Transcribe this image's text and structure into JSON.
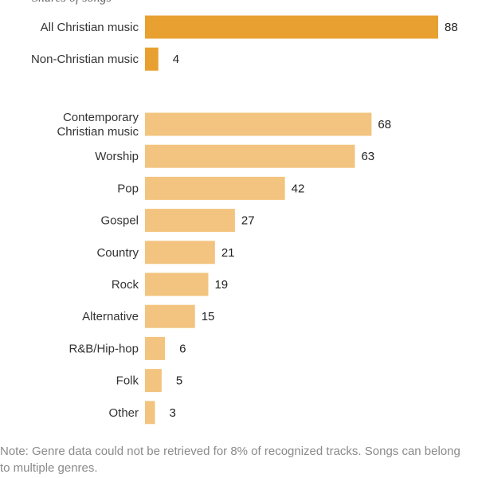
{
  "chart_data": {
    "type": "bar",
    "orientation": "horizontal",
    "title": "",
    "xlabel": "",
    "ylabel": "",
    "xlim": [
      0,
      88
    ],
    "grid": false,
    "groups": [
      {
        "color": "#e8a030",
        "categories": [
          [
            "All Christian music"
          ],
          [
            "Non-Christian music"
          ]
        ],
        "values": [
          88,
          4
        ]
      },
      {
        "color": "#f2c47f",
        "categories": [
          [
            "Contemporary",
            "Christian music"
          ],
          [
            "Worship"
          ],
          [
            "Pop"
          ],
          [
            "Gospel"
          ],
          [
            "Country"
          ],
          [
            "Rock"
          ],
          [
            "Alternative"
          ],
          [
            "R&B/Hip-hop"
          ],
          [
            "Folk"
          ],
          [
            "Other"
          ]
        ],
        "values": [
          68,
          63,
          42,
          27,
          21,
          19,
          15,
          6,
          5,
          3
        ]
      }
    ]
  },
  "note": "Note: Genre data could not be retrieved for 8% of recognized tracks. Songs can belong to multiple genres."
}
